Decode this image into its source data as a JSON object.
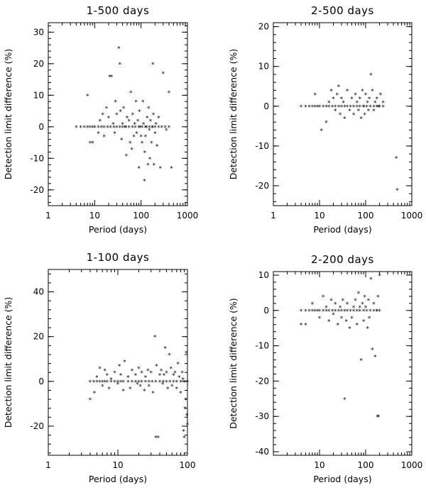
{
  "chart_data": [
    {
      "type": "scatter",
      "title": "1-500 days",
      "xlabel": "Period (days)",
      "ylabel": "Detection limit difference (%)",
      "xscale": "log",
      "xlim": [
        1,
        1000
      ],
      "ylim": [
        -25,
        33
      ],
      "xticks": [
        1,
        10,
        100,
        1000
      ],
      "xtick_labels": [
        "1",
        "10",
        "100",
        "1000"
      ],
      "yticks": [
        -20,
        -10,
        0,
        10,
        20,
        30
      ],
      "ytick_labels": [
        "-20",
        "-10",
        "0",
        "10",
        "20",
        "30"
      ],
      "points": [
        [
          4,
          0
        ],
        [
          5,
          0
        ],
        [
          6,
          0
        ],
        [
          7,
          0
        ],
        [
          8,
          0
        ],
        [
          9,
          0
        ],
        [
          10,
          0
        ],
        [
          12,
          0
        ],
        [
          14,
          0
        ],
        [
          16,
          0
        ],
        [
          19,
          0
        ],
        [
          22,
          0
        ],
        [
          26,
          0
        ],
        [
          30,
          0
        ],
        [
          35,
          0
        ],
        [
          40,
          0
        ],
        [
          47,
          0
        ],
        [
          55,
          0
        ],
        [
          65,
          0
        ],
        [
          75,
          0
        ],
        [
          90,
          0
        ],
        [
          105,
          0
        ],
        [
          125,
          0
        ],
        [
          150,
          0
        ],
        [
          175,
          0
        ],
        [
          200,
          0
        ],
        [
          240,
          0
        ],
        [
          280,
          0
        ],
        [
          330,
          0
        ],
        [
          400,
          0
        ],
        [
          7,
          10
        ],
        [
          8,
          -5
        ],
        [
          9,
          -5
        ],
        [
          12,
          -2
        ],
        [
          13,
          2
        ],
        [
          15,
          4
        ],
        [
          16,
          -3
        ],
        [
          18,
          6
        ],
        [
          20,
          3
        ],
        [
          21,
          16
        ],
        [
          23,
          16
        ],
        [
          25,
          1
        ],
        [
          27,
          -2
        ],
        [
          28,
          8
        ],
        [
          30,
          4
        ],
        [
          33,
          25
        ],
        [
          35,
          20
        ],
        [
          36,
          5
        ],
        [
          38,
          -4
        ],
        [
          40,
          1
        ],
        [
          42,
          6
        ],
        [
          45,
          0
        ],
        [
          48,
          -9
        ],
        [
          50,
          3
        ],
        [
          55,
          2
        ],
        [
          58,
          -5
        ],
        [
          60,
          11
        ],
        [
          63,
          -7
        ],
        [
          66,
          4
        ],
        [
          70,
          -3
        ],
        [
          73,
          1
        ],
        [
          78,
          8
        ],
        [
          80,
          -2
        ],
        [
          85,
          2
        ],
        [
          90,
          -13
        ],
        [
          92,
          5
        ],
        [
          95,
          0
        ],
        [
          100,
          -3
        ],
        [
          105,
          -5
        ],
        [
          110,
          8
        ],
        [
          113,
          1
        ],
        [
          118,
          -17
        ],
        [
          120,
          -8
        ],
        [
          125,
          -3
        ],
        [
          130,
          0
        ],
        [
          135,
          3
        ],
        [
          140,
          -12
        ],
        [
          145,
          6
        ],
        [
          150,
          -1
        ],
        [
          155,
          -10
        ],
        [
          160,
          2
        ],
        [
          168,
          -5
        ],
        [
          175,
          0
        ],
        [
          180,
          20
        ],
        [
          185,
          4
        ],
        [
          190,
          -12
        ],
        [
          200,
          -2
        ],
        [
          210,
          1
        ],
        [
          220,
          -6
        ],
        [
          240,
          3
        ],
        [
          260,
          -13
        ],
        [
          300,
          17
        ],
        [
          350,
          -1
        ],
        [
          400,
          11
        ],
        [
          450,
          -13
        ]
      ]
    },
    {
      "type": "scatter",
      "title": "2-500 days",
      "xlabel": "Period (days)",
      "ylabel": "Detection limit difference (%)",
      "xscale": "log",
      "xlim": [
        1,
        1000
      ],
      "ylim": [
        -25,
        21
      ],
      "xticks": [
        1,
        10,
        100,
        1000
      ],
      "xtick_labels": [
        "1",
        "10",
        "100",
        "1000"
      ],
      "yticks": [
        -20,
        -10,
        0,
        10,
        20
      ],
      "ytick_labels": [
        "-20",
        "-10",
        "0",
        "10",
        "20"
      ],
      "points": [
        [
          4,
          0
        ],
        [
          5,
          0
        ],
        [
          6,
          0
        ],
        [
          7,
          0
        ],
        [
          8,
          0
        ],
        [
          9,
          0
        ],
        [
          10,
          0
        ],
        [
          12,
          0
        ],
        [
          14,
          0
        ],
        [
          16,
          0
        ],
        [
          19,
          0
        ],
        [
          22,
          0
        ],
        [
          26,
          0
        ],
        [
          30,
          0
        ],
        [
          35,
          0
        ],
        [
          40,
          0
        ],
        [
          47,
          0
        ],
        [
          55,
          0
        ],
        [
          65,
          0
        ],
        [
          75,
          0
        ],
        [
          90,
          0
        ],
        [
          105,
          0
        ],
        [
          125,
          0
        ],
        [
          150,
          0
        ],
        [
          175,
          0
        ],
        [
          200,
          0
        ],
        [
          240,
          0
        ],
        [
          8,
          3
        ],
        [
          11,
          -6
        ],
        [
          14,
          -4
        ],
        [
          16,
          1
        ],
        [
          18,
          4
        ],
        [
          20,
          2
        ],
        [
          22,
          -1
        ],
        [
          24,
          3
        ],
        [
          26,
          5
        ],
        [
          28,
          -2
        ],
        [
          30,
          2
        ],
        [
          33,
          1
        ],
        [
          35,
          -3
        ],
        [
          40,
          4
        ],
        [
          45,
          -1
        ],
        [
          50,
          2
        ],
        [
          55,
          -2
        ],
        [
          60,
          3
        ],
        [
          65,
          1
        ],
        [
          70,
          -1
        ],
        [
          75,
          2
        ],
        [
          80,
          -3
        ],
        [
          85,
          4
        ],
        [
          90,
          0
        ],
        [
          95,
          -2
        ],
        [
          100,
          3
        ],
        [
          110,
          1
        ],
        [
          115,
          -1
        ],
        [
          120,
          2
        ],
        [
          130,
          8
        ],
        [
          140,
          4
        ],
        [
          150,
          -1
        ],
        [
          160,
          1
        ],
        [
          175,
          2
        ],
        [
          190,
          0
        ],
        [
          210,
          3
        ],
        [
          240,
          1
        ],
        [
          460,
          -13
        ],
        [
          480,
          -21
        ]
      ]
    },
    {
      "type": "scatter",
      "title": "1-100 days",
      "xlabel": "Period (days)",
      "ylabel": "Detection limit difference (%)",
      "xscale": "log",
      "xlim": [
        1,
        100
      ],
      "ylim": [
        -33,
        50
      ],
      "xticks": [
        1,
        10,
        100
      ],
      "xtick_labels": [
        "1",
        "10",
        "100"
      ],
      "yticks": [
        -20,
        0,
        20,
        40
      ],
      "ytick_labels": [
        "-20",
        "0",
        "20",
        "40"
      ],
      "points": [
        [
          4,
          0
        ],
        [
          4.5,
          0
        ],
        [
          5,
          0
        ],
        [
          5.5,
          0
        ],
        [
          6,
          0
        ],
        [
          6.5,
          0
        ],
        [
          7,
          0
        ],
        [
          8,
          0
        ],
        [
          9,
          0
        ],
        [
          10,
          0
        ],
        [
          11,
          0
        ],
        [
          12,
          0
        ],
        [
          14,
          0
        ],
        [
          16,
          0
        ],
        [
          18,
          0
        ],
        [
          20,
          0
        ],
        [
          22,
          0
        ],
        [
          25,
          0
        ],
        [
          28,
          0
        ],
        [
          31,
          0
        ],
        [
          35,
          0
        ],
        [
          40,
          0
        ],
        [
          45,
          0
        ],
        [
          50,
          0
        ],
        [
          56,
          0
        ],
        [
          63,
          0
        ],
        [
          70,
          0
        ],
        [
          80,
          0
        ],
        [
          90,
          0
        ],
        [
          100,
          0
        ],
        [
          4,
          -8
        ],
        [
          4.6,
          -5
        ],
        [
          5,
          2
        ],
        [
          5.5,
          6
        ],
        [
          6,
          -2
        ],
        [
          6.5,
          5
        ],
        [
          7,
          3
        ],
        [
          7.5,
          -3
        ],
        [
          8,
          1
        ],
        [
          9,
          4
        ],
        [
          10,
          -1
        ],
        [
          10.5,
          7
        ],
        [
          11,
          3
        ],
        [
          12,
          -4
        ],
        [
          12.5,
          9
        ],
        [
          14,
          2
        ],
        [
          15,
          -3
        ],
        [
          16,
          5
        ],
        [
          18,
          3
        ],
        [
          19,
          -1
        ],
        [
          20,
          6
        ],
        [
          21,
          -2
        ],
        [
          22,
          4
        ],
        [
          24,
          -4
        ],
        [
          25,
          2
        ],
        [
          27,
          5
        ],
        [
          28,
          -2
        ],
        [
          30,
          4
        ],
        [
          32,
          -5
        ],
        [
          34,
          20
        ],
        [
          35,
          -25
        ],
        [
          36,
          7
        ],
        [
          38,
          -25
        ],
        [
          40,
          3
        ],
        [
          42,
          5
        ],
        [
          44,
          -1
        ],
        [
          46,
          3
        ],
        [
          48,
          15
        ],
        [
          50,
          4
        ],
        [
          52,
          -3
        ],
        [
          55,
          12
        ],
        [
          58,
          6
        ],
        [
          60,
          -2
        ],
        [
          63,
          3
        ],
        [
          66,
          4
        ],
        [
          70,
          -3
        ],
        [
          73,
          8
        ],
        [
          76,
          2
        ],
        [
          80,
          -5
        ],
        [
          84,
          4
        ],
        [
          86,
          1
        ],
        [
          88,
          -22
        ],
        [
          90,
          -25
        ],
        [
          92,
          -12
        ],
        [
          94,
          -8
        ],
        [
          96,
          13
        ],
        [
          98,
          -15
        ],
        [
          100,
          -19
        ]
      ]
    },
    {
      "type": "scatter",
      "title": "2-200 days",
      "xlabel": "Period (days)",
      "ylabel": "Detection limit difference (%)",
      "xscale": "log",
      "xlim": [
        1,
        1000
      ],
      "ylim": [
        -41,
        11
      ],
      "xticks": [
        10,
        100,
        1000
      ],
      "xtick_labels": [
        "10",
        "100",
        "1000"
      ],
      "yticks": [
        -40,
        -30,
        -20,
        -10,
        0,
        10
      ],
      "ytick_labels": [
        "-40",
        "-30",
        "-20",
        "-10",
        "0",
        "10"
      ],
      "points": [
        [
          4,
          0
        ],
        [
          5,
          0
        ],
        [
          6,
          0
        ],
        [
          7,
          0
        ],
        [
          8,
          0
        ],
        [
          9,
          0
        ],
        [
          10,
          0
        ],
        [
          12,
          0
        ],
        [
          14,
          0
        ],
        [
          16,
          0
        ],
        [
          19,
          0
        ],
        [
          22,
          0
        ],
        [
          26,
          0
        ],
        [
          30,
          0
        ],
        [
          35,
          0
        ],
        [
          40,
          0
        ],
        [
          47,
          0
        ],
        [
          55,
          0
        ],
        [
          65,
          0
        ],
        [
          75,
          0
        ],
        [
          90,
          0
        ],
        [
          105,
          0
        ],
        [
          125,
          0
        ],
        [
          150,
          0
        ],
        [
          175,
          0
        ],
        [
          200,
          0
        ],
        [
          4,
          -4
        ],
        [
          5,
          -4
        ],
        [
          7,
          2
        ],
        [
          10,
          -2
        ],
        [
          12,
          4
        ],
        [
          14,
          1
        ],
        [
          16,
          -3
        ],
        [
          18,
          3
        ],
        [
          20,
          -1
        ],
        [
          22,
          2
        ],
        [
          25,
          -4
        ],
        [
          28,
          1
        ],
        [
          30,
          -2
        ],
        [
          32,
          3
        ],
        [
          35,
          -25
        ],
        [
          38,
          -3
        ],
        [
          40,
          2
        ],
        [
          45,
          -5
        ],
        [
          50,
          -2
        ],
        [
          55,
          1
        ],
        [
          60,
          3
        ],
        [
          65,
          -4
        ],
        [
          70,
          5
        ],
        [
          75,
          1
        ],
        [
          80,
          -14
        ],
        [
          85,
          2
        ],
        [
          90,
          -3
        ],
        [
          95,
          4
        ],
        [
          100,
          1
        ],
        [
          110,
          -5
        ],
        [
          115,
          3
        ],
        [
          120,
          -2
        ],
        [
          130,
          9
        ],
        [
          140,
          -11
        ],
        [
          150,
          2
        ],
        [
          160,
          -13
        ],
        [
          175,
          0
        ],
        [
          180,
          -30
        ],
        [
          185,
          4
        ],
        [
          190,
          -30
        ],
        [
          200,
          10
        ]
      ]
    }
  ]
}
